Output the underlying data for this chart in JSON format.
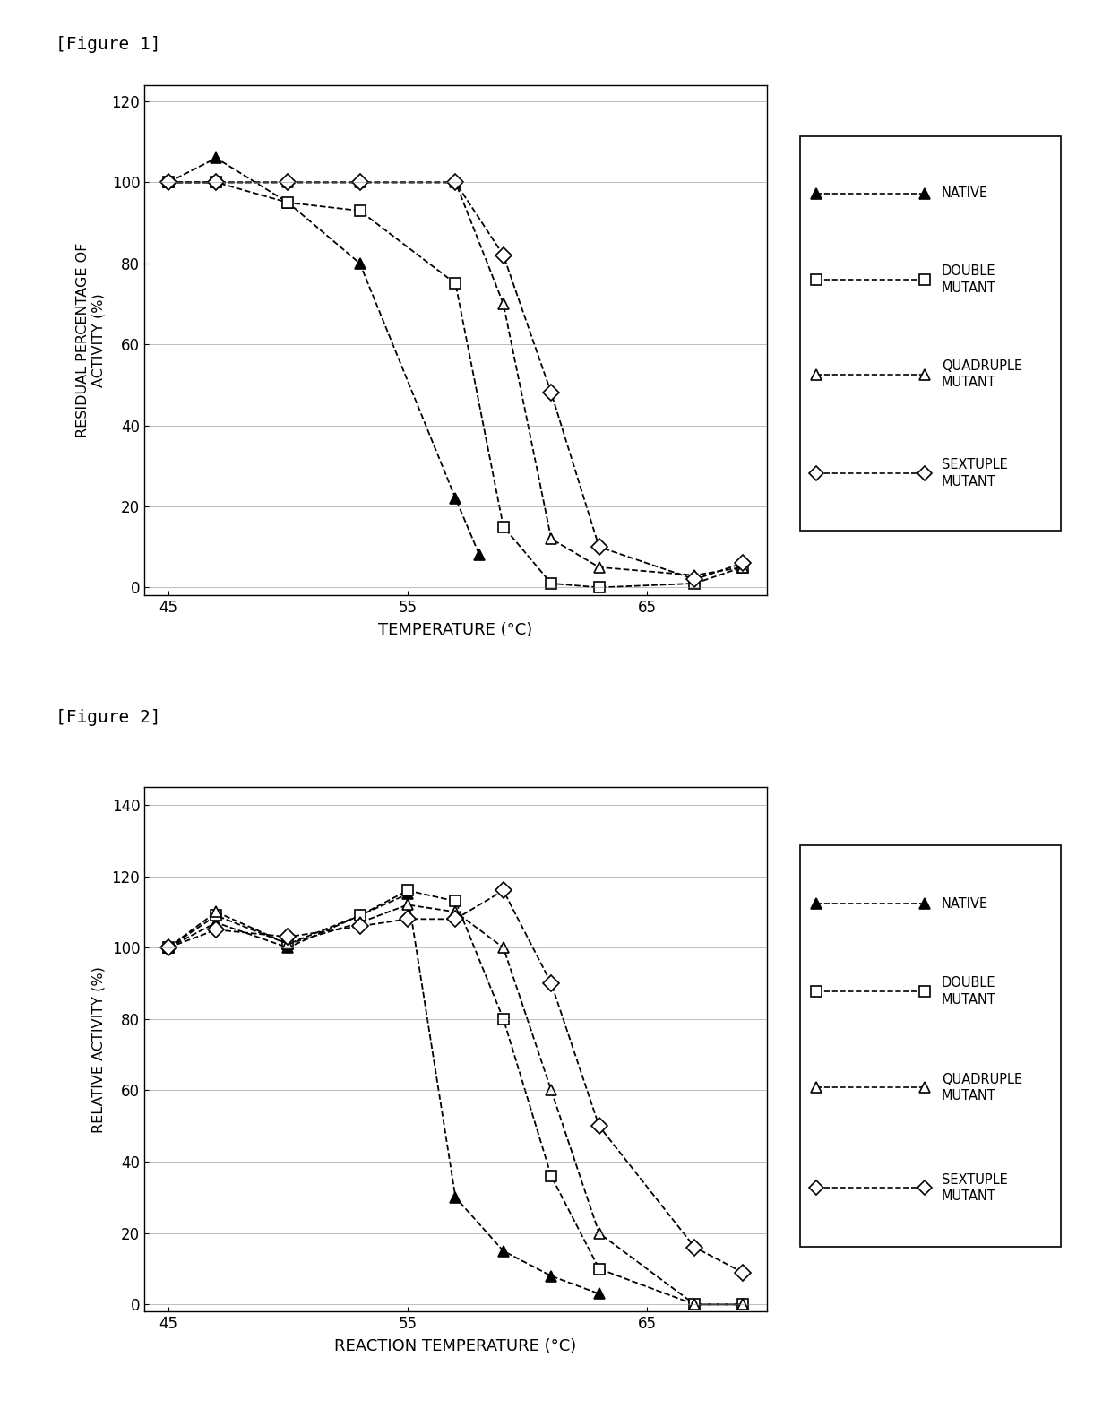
{
  "fig1": {
    "fig_label": "[Figure 1]",
    "xlabel": "TEMPERATURE (°C)",
    "ylabel": "RESIDUAL PERCENTAGE OF\nACTIVITY (%)",
    "xlim": [
      44,
      70
    ],
    "ylim": [
      -2,
      124
    ],
    "xticks": [
      45,
      55,
      65
    ],
    "yticks": [
      0,
      20,
      40,
      60,
      80,
      100,
      120
    ],
    "series": [
      {
        "label": "NATIVE",
        "x": [
          45,
          47,
          50,
          53,
          57,
          58
        ],
        "y": [
          100,
          106,
          95,
          80,
          22,
          8
        ],
        "marker": "^",
        "fillstyle": "full",
        "linestyle": "--"
      },
      {
        "label": "DOUBLE\nMUTANT",
        "x": [
          45,
          47,
          50,
          53,
          57,
          59,
          61,
          63,
          67,
          69
        ],
        "y": [
          100,
          100,
          95,
          93,
          75,
          15,
          1,
          0,
          1,
          5
        ],
        "marker": "s",
        "fillstyle": "none",
        "linestyle": "--"
      },
      {
        "label": "QUADRUPLE\nMUTANT",
        "x": [
          45,
          47,
          50,
          53,
          57,
          59,
          61,
          63,
          67,
          69
        ],
        "y": [
          100,
          100,
          100,
          100,
          100,
          70,
          12,
          5,
          3,
          5
        ],
        "marker": "^",
        "fillstyle": "none",
        "linestyle": "--"
      },
      {
        "label": "SEXTUPLE\nMUTANT",
        "x": [
          45,
          47,
          50,
          53,
          57,
          59,
          61,
          63,
          67,
          69
        ],
        "y": [
          100,
          100,
          100,
          100,
          100,
          82,
          48,
          10,
          2,
          6
        ],
        "marker": "D",
        "fillstyle": "none",
        "linestyle": "--"
      }
    ]
  },
  "fig2": {
    "fig_label": "[Figure 2]",
    "xlabel": "REACTION TEMPERATURE (°C)",
    "ylabel": "RELATIVE ACTIVITY (%)",
    "xlim": [
      44,
      70
    ],
    "ylim": [
      -2,
      145
    ],
    "xticks": [
      45,
      55,
      65
    ],
    "yticks": [
      0,
      20,
      40,
      60,
      80,
      100,
      120,
      140
    ],
    "series": [
      {
        "label": "NATIVE",
        "x": [
          45,
          47,
          50,
          53,
          55,
          57,
          59,
          61,
          63
        ],
        "y": [
          100,
          107,
          100,
          109,
          115,
          30,
          15,
          8,
          3
        ],
        "marker": "^",
        "fillstyle": "full",
        "linestyle": "--"
      },
      {
        "label": "DOUBLE\nMUTANT",
        "x": [
          45,
          47,
          50,
          53,
          55,
          57,
          59,
          61,
          63,
          67,
          69
        ],
        "y": [
          100,
          109,
          101,
          109,
          116,
          113,
          80,
          36,
          10,
          0,
          0
        ],
        "marker": "s",
        "fillstyle": "none",
        "linestyle": "--"
      },
      {
        "label": "QUADRUPLE\nMUTANT",
        "x": [
          45,
          47,
          50,
          53,
          55,
          57,
          59,
          61,
          63,
          67,
          69
        ],
        "y": [
          100,
          110,
          101,
          107,
          112,
          110,
          100,
          60,
          20,
          0,
          0
        ],
        "marker": "^",
        "fillstyle": "none",
        "linestyle": "--"
      },
      {
        "label": "SEXTUPLE\nMUTANT",
        "x": [
          45,
          47,
          50,
          53,
          55,
          57,
          59,
          61,
          63,
          67,
          69
        ],
        "y": [
          100,
          105,
          103,
          106,
          108,
          108,
          116,
          90,
          50,
          16,
          9
        ],
        "marker": "D",
        "fillstyle": "none",
        "linestyle": "--"
      }
    ]
  },
  "color": "#000000",
  "background_color": "#ffffff",
  "legend_labels_display": [
    "NATIVE",
    "DOUBLE\nMUTANT",
    "QUADRUPLE\nMUTANT",
    "SEXTUPLE\nMUTANT"
  ]
}
